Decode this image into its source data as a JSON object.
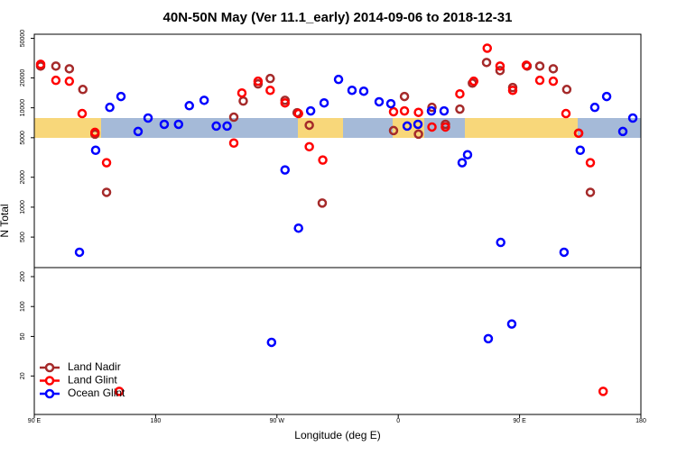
{
  "chart_data": {
    "type": "scatter",
    "title": "40N-50N May (Ver 11.1_early)   2014-09-06 to 2018-12-31",
    "xlabel": "Longitude (deg E)",
    "ylabel": "N Total",
    "log_y": true,
    "legend": "bottom-left",
    "xlim": [
      90,
      540
    ],
    "xticks": [
      {
        "value": 90,
        "label": "90 E"
      },
      180,
      {
        "value": 270,
        "label": "90 W"
      },
      {
        "value": 360,
        "label": "0"
      },
      {
        "value": 450,
        "label": "90 E"
      },
      {
        "value": 540,
        "label": "180"
      }
    ],
    "ylim": [
      8.2,
      55000
    ],
    "yticks": [
      20,
      50,
      100,
      200,
      500,
      1000,
      2000,
      5000,
      10000,
      20000,
      50000
    ],
    "series": [
      {
        "name": "Land Nadir",
        "color": "#a52a2a",
        "x": [
          94.7,
          106,
          116,
          126,
          135,
          143.6,
          238,
          245,
          256,
          265,
          276,
          285,
          294,
          303.6,
          356.5,
          364.6,
          375,
          385,
          395,
          405.7,
          415,
          425.5,
          435.5,
          444.9,
          455.6,
          465,
          475,
          485,
          493.8,
          502.5
        ],
        "values": [
          26300,
          26300,
          24700,
          15300,
          5430,
          1410,
          8050,
          11700,
          17400,
          19700,
          11900,
          8930,
          6680,
          1100,
          5900,
          13000,
          5430,
          10100,
          6820,
          9700,
          17700,
          28600,
          23700,
          16000,
          26300,
          26300,
          24700,
          15300,
          5550,
          1410
        ]
      },
      {
        "name": "Land Glint",
        "color": "#ff0000",
        "x": [
          94.7,
          106,
          116,
          125.5,
          135,
          143.6,
          153,
          238,
          244,
          256,
          265,
          276,
          286,
          294,
          304,
          356.5,
          364.6,
          375,
          385,
          395,
          405.7,
          416,
          426,
          435.5,
          444.9,
          455,
          465,
          475,
          484.4,
          493.8,
          502.5,
          512
        ],
        "values": [
          27400,
          18900,
          18500,
          8750,
          5660,
          2800,
          14,
          4420,
          14100,
          18500,
          15000,
          11200,
          8750,
          4060,
          2980,
          9120,
          9300,
          9000,
          6410,
          6410,
          13800,
          18500,
          39800,
          26300,
          15000,
          26800,
          18900,
          18500,
          8750,
          5550,
          2800,
          14
        ]
      },
      {
        "name": "Ocean Glint",
        "color": "#0000ff",
        "x": [
          123.5,
          135.5,
          146,
          154.3,
          167,
          174.4,
          186.4,
          197,
          205,
          216,
          225,
          233,
          266,
          276,
          286,
          295,
          305,
          315.7,
          325.7,
          334.4,
          345.8,
          354.5,
          366.6,
          374.6,
          384.6,
          394,
          407.4,
          411.4,
          426.8,
          436,
          444.2,
          483,
          495,
          505.8,
          514.6,
          526.6,
          534
        ],
        "values": [
          352,
          3740,
          10100,
          13000,
          5780,
          7890,
          6820,
          6820,
          10500,
          11900,
          6550,
          6550,
          43.6,
          2370,
          615,
          9310,
          11200,
          19300,
          15000,
          14700,
          11500,
          11000,
          6550,
          6820,
          9300,
          9300,
          2800,
          3370,
          47.5,
          442,
          66.7,
          352,
          3740,
          10100,
          13000,
          5780,
          7890
        ]
      }
    ]
  }
}
